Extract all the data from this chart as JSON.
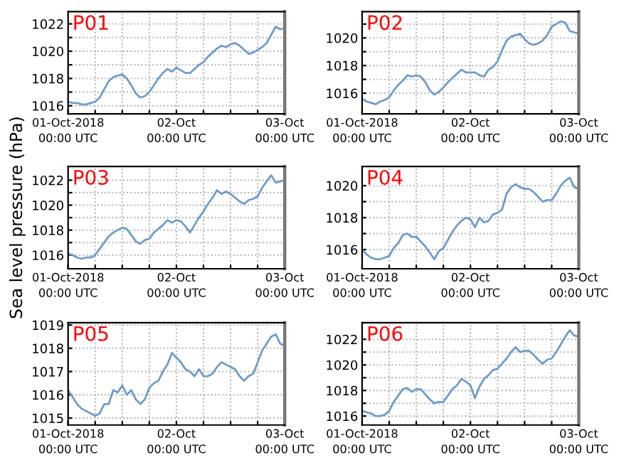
{
  "chart_data": [
    {
      "type": "line",
      "title": "P01",
      "x": [
        "2018-10-01T00:00",
        "2018-10-01T01:00",
        "2018-10-01T02:00",
        "2018-10-01T03:00",
        "2018-10-01T04:00",
        "2018-10-01T05:00",
        "2018-10-01T06:00",
        "2018-10-01T07:00",
        "2018-10-01T08:00",
        "2018-10-01T09:00",
        "2018-10-01T10:00",
        "2018-10-01T11:00",
        "2018-10-01T12:00",
        "2018-10-01T13:00",
        "2018-10-01T14:00",
        "2018-10-01T15:00",
        "2018-10-01T16:00",
        "2018-10-01T17:00",
        "2018-10-01T18:00",
        "2018-10-01T19:00",
        "2018-10-01T20:00",
        "2018-10-01T21:00",
        "2018-10-01T22:00",
        "2018-10-01T23:00",
        "2018-10-02T00:00",
        "2018-10-02T01:00",
        "2018-10-02T02:00",
        "2018-10-02T03:00",
        "2018-10-02T04:00",
        "2018-10-02T05:00",
        "2018-10-02T06:00",
        "2018-10-02T07:00",
        "2018-10-02T08:00",
        "2018-10-02T09:00",
        "2018-10-02T10:00",
        "2018-10-02T11:00",
        "2018-10-02T12:00",
        "2018-10-02T13:00",
        "2018-10-02T14:00",
        "2018-10-02T15:00",
        "2018-10-02T16:00",
        "2018-10-02T17:00",
        "2018-10-02T18:00",
        "2018-10-02T19:00",
        "2018-10-02T20:00",
        "2018-10-02T21:00",
        "2018-10-02T22:00",
        "2018-10-02T23:00",
        "2018-10-03T00:00"
      ],
      "series": [
        {
          "color": "#6e9ccb",
          "values": [
            1016.3,
            1016.2,
            1016.2,
            1016.1,
            1016.1,
            1016.2,
            1016.3,
            1016.6,
            1017.2,
            1017.8,
            1018.1,
            1018.2,
            1018.3,
            1018.0,
            1017.5,
            1016.9,
            1016.6,
            1016.7,
            1017.0,
            1017.5,
            1018.0,
            1018.4,
            1018.7,
            1018.5,
            1018.8,
            1018.6,
            1018.4,
            1018.4,
            1018.7,
            1019.0,
            1019.2,
            1019.6,
            1019.9,
            1020.2,
            1020.4,
            1020.3,
            1020.5,
            1020.6,
            1020.4,
            1020.1,
            1019.8,
            1019.9,
            1020.1,
            1020.3,
            1020.6,
            1021.2,
            1021.8,
            1021.6,
            1021.7
          ]
        }
      ],
      "xlim": [
        "2018-10-01T00:00",
        "2018-10-03T00:00"
      ],
      "xticks": [
        {
          "value": "2018-10-01T00:00",
          "label": "01-Oct-2018\n00:00 UTC"
        },
        {
          "value": "2018-10-01T06:00",
          "label": null
        },
        {
          "value": "2018-10-01T12:00",
          "label": null
        },
        {
          "value": "2018-10-01T18:00",
          "label": null
        },
        {
          "value": "2018-10-02T00:00",
          "label": "02-Oct\n00:00 UTC"
        },
        {
          "value": "2018-10-02T06:00",
          "label": null
        },
        {
          "value": "2018-10-02T12:00",
          "label": null
        },
        {
          "value": "2018-10-02T18:00",
          "label": null
        },
        {
          "value": "2018-10-03T00:00",
          "label": "03-Oct\n00:00 UTC"
        }
      ],
      "ylim": [
        1015.4,
        1022.9
      ],
      "yticks": [
        1016,
        {
          "value": 1017,
          "label": null
        },
        1018,
        {
          "value": 1019,
          "label": null
        },
        1020,
        {
          "value": 1021,
          "label": null
        },
        1022
      ],
      "grid": true
    },
    {
      "type": "line",
      "title": "P02",
      "x": [
        "2018-10-01T00:00",
        "2018-10-01T01:00",
        "2018-10-01T02:00",
        "2018-10-01T03:00",
        "2018-10-01T04:00",
        "2018-10-01T05:00",
        "2018-10-01T06:00",
        "2018-10-01T07:00",
        "2018-10-01T08:00",
        "2018-10-01T09:00",
        "2018-10-01T10:00",
        "2018-10-01T11:00",
        "2018-10-01T12:00",
        "2018-10-01T13:00",
        "2018-10-01T14:00",
        "2018-10-01T15:00",
        "2018-10-01T16:00",
        "2018-10-01T17:00",
        "2018-10-01T18:00",
        "2018-10-01T19:00",
        "2018-10-01T20:00",
        "2018-10-01T21:00",
        "2018-10-01T22:00",
        "2018-10-01T23:00",
        "2018-10-02T00:00",
        "2018-10-02T01:00",
        "2018-10-02T02:00",
        "2018-10-02T03:00",
        "2018-10-02T04:00",
        "2018-10-02T05:00",
        "2018-10-02T06:00",
        "2018-10-02T07:00",
        "2018-10-02T08:00",
        "2018-10-02T09:00",
        "2018-10-02T10:00",
        "2018-10-02T11:00",
        "2018-10-02T12:00",
        "2018-10-02T13:00",
        "2018-10-02T14:00",
        "2018-10-02T15:00",
        "2018-10-02T16:00",
        "2018-10-02T17:00",
        "2018-10-02T18:00",
        "2018-10-02T19:00",
        "2018-10-02T20:00",
        "2018-10-02T21:00",
        "2018-10-02T22:00",
        "2018-10-02T23:00",
        "2018-10-03T00:00"
      ],
      "series": [
        {
          "color": "#6e9ccb",
          "values": [
            1015.6,
            1015.4,
            1015.3,
            1015.2,
            1015.4,
            1015.5,
            1015.7,
            1016.2,
            1016.6,
            1016.9,
            1017.3,
            1017.2,
            1017.3,
            1017.2,
            1016.8,
            1016.2,
            1015.9,
            1016.1,
            1016.4,
            1016.8,
            1017.1,
            1017.4,
            1017.7,
            1017.5,
            1017.5,
            1017.5,
            1017.3,
            1017.2,
            1017.7,
            1017.9,
            1018.3,
            1019.1,
            1019.8,
            1020.1,
            1020.2,
            1020.3,
            1019.9,
            1019.6,
            1019.5,
            1019.6,
            1019.8,
            1020.2,
            1020.8,
            1021.0,
            1021.2,
            1021.1,
            1020.5,
            1020.4,
            1020.3
          ]
        }
      ],
      "xlim": [
        "2018-10-01T00:00",
        "2018-10-03T00:00"
      ],
      "xticks": [
        {
          "value": "2018-10-01T00:00",
          "label": "01-Oct-2018\n00:00 UTC"
        },
        {
          "value": "2018-10-01T06:00",
          "label": null
        },
        {
          "value": "2018-10-01T12:00",
          "label": null
        },
        {
          "value": "2018-10-01T18:00",
          "label": null
        },
        {
          "value": "2018-10-02T00:00",
          "label": "02-Oct\n00:00 UTC"
        },
        {
          "value": "2018-10-02T06:00",
          "label": null
        },
        {
          "value": "2018-10-02T12:00",
          "label": null
        },
        {
          "value": "2018-10-02T18:00",
          "label": null
        },
        {
          "value": "2018-10-03T00:00",
          "label": "03-Oct\n00:00 UTC"
        }
      ],
      "ylim": [
        1014.5,
        1021.9
      ],
      "yticks": [
        1016,
        {
          "value": 1017,
          "label": null
        },
        1018,
        {
          "value": 1019,
          "label": null
        },
        1020,
        {
          "value": 1021,
          "label": null
        }
      ],
      "grid": true
    },
    {
      "type": "line",
      "title": "P03",
      "ylabel": "Sea level pressure (hPa)",
      "x": [
        "2018-10-01T00:00",
        "2018-10-01T01:00",
        "2018-10-01T02:00",
        "2018-10-01T03:00",
        "2018-10-01T04:00",
        "2018-10-01T05:00",
        "2018-10-01T06:00",
        "2018-10-01T07:00",
        "2018-10-01T08:00",
        "2018-10-01T09:00",
        "2018-10-01T10:00",
        "2018-10-01T11:00",
        "2018-10-01T12:00",
        "2018-10-01T13:00",
        "2018-10-01T14:00",
        "2018-10-01T15:00",
        "2018-10-01T16:00",
        "2018-10-01T17:00",
        "2018-10-01T18:00",
        "2018-10-01T19:00",
        "2018-10-01T20:00",
        "2018-10-01T21:00",
        "2018-10-01T22:00",
        "2018-10-01T23:00",
        "2018-10-02T00:00",
        "2018-10-02T01:00",
        "2018-10-02T02:00",
        "2018-10-02T03:00",
        "2018-10-02T04:00",
        "2018-10-02T05:00",
        "2018-10-02T06:00",
        "2018-10-02T07:00",
        "2018-10-02T08:00",
        "2018-10-02T09:00",
        "2018-10-02T10:00",
        "2018-10-02T11:00",
        "2018-10-02T12:00",
        "2018-10-02T13:00",
        "2018-10-02T14:00",
        "2018-10-02T15:00",
        "2018-10-02T16:00",
        "2018-10-02T17:00",
        "2018-10-02T18:00",
        "2018-10-02T19:00",
        "2018-10-02T20:00",
        "2018-10-02T21:00",
        "2018-10-02T22:00",
        "2018-10-02T23:00",
        "2018-10-03T00:00"
      ],
      "series": [
        {
          "color": "#6e9ccb",
          "values": [
            1016.1,
            1016.0,
            1015.8,
            1015.7,
            1015.8,
            1015.8,
            1016.0,
            1016.5,
            1017.0,
            1017.5,
            1017.8,
            1018.0,
            1018.2,
            1018.1,
            1017.6,
            1017.1,
            1016.9,
            1017.2,
            1017.3,
            1017.8,
            1018.1,
            1018.4,
            1018.8,
            1018.6,
            1018.8,
            1018.7,
            1018.3,
            1017.8,
            1018.4,
            1019.0,
            1019.5,
            1020.1,
            1020.6,
            1021.2,
            1020.9,
            1021.1,
            1020.9,
            1020.6,
            1020.3,
            1020.1,
            1020.4,
            1020.5,
            1020.7,
            1021.4,
            1021.9,
            1022.4,
            1021.8,
            1021.9,
            1022.0
          ]
        }
      ],
      "xlim": [
        "2018-10-01T00:00",
        "2018-10-03T00:00"
      ],
      "xticks": [
        {
          "value": "2018-10-01T00:00",
          "label": "01-Oct-2018\n00:00 UTC"
        },
        {
          "value": "2018-10-01T06:00",
          "label": null
        },
        {
          "value": "2018-10-01T12:00",
          "label": null
        },
        {
          "value": "2018-10-01T18:00",
          "label": null
        },
        {
          "value": "2018-10-02T00:00",
          "label": "02-Oct\n00:00 UTC"
        },
        {
          "value": "2018-10-02T06:00",
          "label": null
        },
        {
          "value": "2018-10-02T12:00",
          "label": null
        },
        {
          "value": "2018-10-02T18:00",
          "label": null
        },
        {
          "value": "2018-10-03T00:00",
          "label": "03-Oct\n00:00 UTC"
        }
      ],
      "ylim": [
        1014.9,
        1023.1
      ],
      "yticks": [
        1016,
        {
          "value": 1017,
          "label": null
        },
        1018,
        {
          "value": 1019,
          "label": null
        },
        1020,
        {
          "value": 1021,
          "label": null
        },
        1022
      ],
      "grid": true
    },
    {
      "type": "line",
      "title": "P04",
      "x": [
        "2018-10-01T00:00",
        "2018-10-01T01:00",
        "2018-10-01T02:00",
        "2018-10-01T03:00",
        "2018-10-01T04:00",
        "2018-10-01T05:00",
        "2018-10-01T06:00",
        "2018-10-01T07:00",
        "2018-10-01T08:00",
        "2018-10-01T09:00",
        "2018-10-01T10:00",
        "2018-10-01T11:00",
        "2018-10-01T12:00",
        "2018-10-01T13:00",
        "2018-10-01T14:00",
        "2018-10-01T15:00",
        "2018-10-01T16:00",
        "2018-10-01T17:00",
        "2018-10-01T18:00",
        "2018-10-01T19:00",
        "2018-10-01T20:00",
        "2018-10-01T21:00",
        "2018-10-01T22:00",
        "2018-10-01T23:00",
        "2018-10-02T00:00",
        "2018-10-02T01:00",
        "2018-10-02T02:00",
        "2018-10-02T03:00",
        "2018-10-02T04:00",
        "2018-10-02T05:00",
        "2018-10-02T06:00",
        "2018-10-02T07:00",
        "2018-10-02T08:00",
        "2018-10-02T09:00",
        "2018-10-02T10:00",
        "2018-10-02T11:00",
        "2018-10-02T12:00",
        "2018-10-02T13:00",
        "2018-10-02T14:00",
        "2018-10-02T15:00",
        "2018-10-02T16:00",
        "2018-10-02T17:00",
        "2018-10-02T18:00",
        "2018-10-02T19:00",
        "2018-10-02T20:00",
        "2018-10-02T21:00",
        "2018-10-02T22:00",
        "2018-10-02T23:00",
        "2018-10-03T00:00"
      ],
      "series": [
        {
          "color": "#6e9ccb",
          "values": [
            1016.0,
            1015.7,
            1015.5,
            1015.4,
            1015.4,
            1015.5,
            1015.6,
            1016.1,
            1016.4,
            1016.9,
            1017.0,
            1016.8,
            1016.8,
            1016.5,
            1016.2,
            1015.8,
            1015.4,
            1015.9,
            1016.1,
            1016.6,
            1017.1,
            1017.5,
            1017.8,
            1018.0,
            1017.9,
            1017.4,
            1018.0,
            1017.7,
            1017.8,
            1018.2,
            1018.3,
            1018.5,
            1019.5,
            1019.9,
            1020.1,
            1019.9,
            1019.8,
            1019.8,
            1019.6,
            1019.3,
            1019.0,
            1019.1,
            1019.1,
            1019.5,
            1020.0,
            1020.3,
            1020.5,
            1019.9,
            1019.8
          ]
        }
      ],
      "xlim": [
        "2018-10-01T00:00",
        "2018-10-03T00:00"
      ],
      "xticks": [
        {
          "value": "2018-10-01T00:00",
          "label": "01-Oct-2018\n00:00 UTC"
        },
        {
          "value": "2018-10-01T06:00",
          "label": null
        },
        {
          "value": "2018-10-01T12:00",
          "label": null
        },
        {
          "value": "2018-10-01T18:00",
          "label": null
        },
        {
          "value": "2018-10-02T00:00",
          "label": "02-Oct\n00:00 UTC"
        },
        {
          "value": "2018-10-02T06:00",
          "label": null
        },
        {
          "value": "2018-10-02T12:00",
          "label": null
        },
        {
          "value": "2018-10-02T18:00",
          "label": null
        },
        {
          "value": "2018-10-03T00:00",
          "label": "03-Oct\n00:00 UTC"
        }
      ],
      "ylim": [
        1014.8,
        1021.2
      ],
      "yticks": [
        1016,
        {
          "value": 1017,
          "label": null
        },
        1018,
        {
          "value": 1019,
          "label": null
        },
        1020
      ],
      "grid": true
    },
    {
      "type": "line",
      "title": "P05",
      "x": [
        "2018-10-01T00:00",
        "2018-10-01T01:00",
        "2018-10-01T02:00",
        "2018-10-01T03:00",
        "2018-10-01T04:00",
        "2018-10-01T05:00",
        "2018-10-01T06:00",
        "2018-10-01T07:00",
        "2018-10-01T08:00",
        "2018-10-01T09:00",
        "2018-10-01T10:00",
        "2018-10-01T11:00",
        "2018-10-01T12:00",
        "2018-10-01T13:00",
        "2018-10-01T14:00",
        "2018-10-01T15:00",
        "2018-10-01T16:00",
        "2018-10-01T17:00",
        "2018-10-01T18:00",
        "2018-10-01T19:00",
        "2018-10-01T20:00",
        "2018-10-01T21:00",
        "2018-10-01T22:00",
        "2018-10-01T23:00",
        "2018-10-02T00:00",
        "2018-10-02T01:00",
        "2018-10-02T02:00",
        "2018-10-02T03:00",
        "2018-10-02T04:00",
        "2018-10-02T05:00",
        "2018-10-02T06:00",
        "2018-10-02T07:00",
        "2018-10-02T08:00",
        "2018-10-02T09:00",
        "2018-10-02T10:00",
        "2018-10-02T11:00",
        "2018-10-02T12:00",
        "2018-10-02T13:00",
        "2018-10-02T14:00",
        "2018-10-02T15:00",
        "2018-10-02T16:00",
        "2018-10-02T17:00",
        "2018-10-02T18:00",
        "2018-10-02T19:00",
        "2018-10-02T20:00",
        "2018-10-02T21:00",
        "2018-10-02T22:00",
        "2018-10-02T23:00",
        "2018-10-03T00:00"
      ],
      "series": [
        {
          "color": "#6e9ccb",
          "values": [
            1016.2,
            1015.9,
            1015.6,
            1015.4,
            1015.3,
            1015.2,
            1015.1,
            1015.2,
            1015.6,
            1015.6,
            1016.2,
            1016.1,
            1016.4,
            1016.0,
            1016.2,
            1015.8,
            1015.6,
            1015.8,
            1016.3,
            1016.5,
            1016.6,
            1017.0,
            1017.3,
            1017.8,
            1017.6,
            1017.4,
            1017.1,
            1017.0,
            1016.8,
            1017.1,
            1016.8,
            1016.8,
            1016.9,
            1017.2,
            1017.4,
            1017.3,
            1017.2,
            1017.1,
            1016.8,
            1016.6,
            1016.8,
            1016.9,
            1017.4,
            1017.9,
            1018.2,
            1018.5,
            1018.6,
            1018.2,
            1018.1
          ]
        }
      ],
      "xlim": [
        "2018-10-01T00:00",
        "2018-10-03T00:00"
      ],
      "xticks": [
        {
          "value": "2018-10-01T00:00",
          "label": "01-Oct-2018\n00:00 UTC"
        },
        {
          "value": "2018-10-01T06:00",
          "label": null
        },
        {
          "value": "2018-10-01T12:00",
          "label": null
        },
        {
          "value": "2018-10-01T18:00",
          "label": null
        },
        {
          "value": "2018-10-02T00:00",
          "label": "02-Oct\n00:00 UTC"
        },
        {
          "value": "2018-10-02T06:00",
          "label": null
        },
        {
          "value": "2018-10-02T12:00",
          "label": null
        },
        {
          "value": "2018-10-02T18:00",
          "label": null
        },
        {
          "value": "2018-10-03T00:00",
          "label": "03-Oct\n00:00 UTC"
        }
      ],
      "ylim": [
        1014.7,
        1019.1
      ],
      "yticks": [
        1015,
        1016,
        1017,
        1018,
        1019
      ],
      "grid": true
    },
    {
      "type": "line",
      "title": "P06",
      "x": [
        "2018-10-01T00:00",
        "2018-10-01T01:00",
        "2018-10-01T02:00",
        "2018-10-01T03:00",
        "2018-10-01T04:00",
        "2018-10-01T05:00",
        "2018-10-01T06:00",
        "2018-10-01T07:00",
        "2018-10-01T08:00",
        "2018-10-01T09:00",
        "2018-10-01T10:00",
        "2018-10-01T11:00",
        "2018-10-01T12:00",
        "2018-10-01T13:00",
        "2018-10-01T14:00",
        "2018-10-01T15:00",
        "2018-10-01T16:00",
        "2018-10-01T17:00",
        "2018-10-01T18:00",
        "2018-10-01T19:00",
        "2018-10-01T20:00",
        "2018-10-01T21:00",
        "2018-10-01T22:00",
        "2018-10-01T23:00",
        "2018-10-02T00:00",
        "2018-10-02T01:00",
        "2018-10-02T02:00",
        "2018-10-02T03:00",
        "2018-10-02T04:00",
        "2018-10-02T05:00",
        "2018-10-02T06:00",
        "2018-10-02T07:00",
        "2018-10-02T08:00",
        "2018-10-02T09:00",
        "2018-10-02T10:00",
        "2018-10-02T11:00",
        "2018-10-02T12:00",
        "2018-10-02T13:00",
        "2018-10-02T14:00",
        "2018-10-02T15:00",
        "2018-10-02T16:00",
        "2018-10-02T17:00",
        "2018-10-02T18:00",
        "2018-10-02T19:00",
        "2018-10-02T20:00",
        "2018-10-02T21:00",
        "2018-10-02T22:00",
        "2018-10-02T23:00",
        "2018-10-03T00:00"
      ],
      "series": [
        {
          "color": "#6e9ccb",
          "values": [
            1016.4,
            1016.3,
            1016.2,
            1016.0,
            1016.0,
            1016.1,
            1016.4,
            1017.1,
            1017.6,
            1018.1,
            1018.2,
            1017.9,
            1018.1,
            1018.1,
            1017.7,
            1017.3,
            1017.0,
            1017.1,
            1017.1,
            1017.6,
            1018.1,
            1018.4,
            1018.9,
            1018.7,
            1018.4,
            1017.4,
            1018.3,
            1018.9,
            1019.2,
            1019.6,
            1019.7,
            1020.1,
            1020.5,
            1021.0,
            1021.4,
            1021.0,
            1021.1,
            1021.1,
            1020.8,
            1020.4,
            1020.1,
            1020.4,
            1020.5,
            1021.0,
            1021.6,
            1022.2,
            1022.7,
            1022.3,
            1022.2
          ]
        }
      ],
      "xlim": [
        "2018-10-01T00:00",
        "2018-10-03T00:00"
      ],
      "xticks": [
        {
          "value": "2018-10-01T00:00",
          "label": "01-Oct-2018\n00:00 UTC"
        },
        {
          "value": "2018-10-01T06:00",
          "label": null
        },
        {
          "value": "2018-10-01T12:00",
          "label": null
        },
        {
          "value": "2018-10-01T18:00",
          "label": null
        },
        {
          "value": "2018-10-02T00:00",
          "label": "02-Oct\n00:00 UTC"
        },
        {
          "value": "2018-10-02T06:00",
          "label": null
        },
        {
          "value": "2018-10-02T12:00",
          "label": null
        },
        {
          "value": "2018-10-02T18:00",
          "label": null
        },
        {
          "value": "2018-10-03T00:00",
          "label": "03-Oct\n00:00 UTC"
        }
      ],
      "ylim": [
        1015.3,
        1023.3
      ],
      "yticks": [
        1016,
        {
          "value": 1017,
          "label": null
        },
        1018,
        {
          "value": 1019,
          "label": null
        },
        1020,
        {
          "value": 1021,
          "label": null
        },
        1022
      ],
      "grid": true
    }
  ]
}
